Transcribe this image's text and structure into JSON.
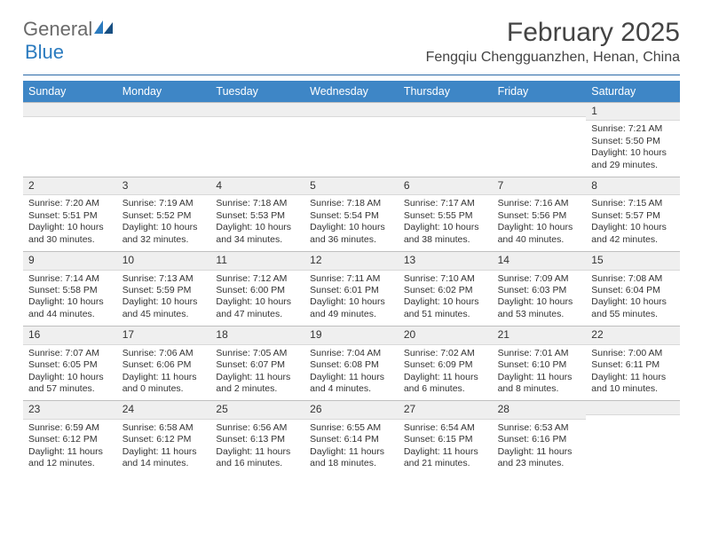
{
  "brand": {
    "g": "General",
    "b": "Blue"
  },
  "title": "February 2025",
  "location": "Fengqiu Chengguanzhen, Henan, China",
  "colors": {
    "header_bg": "#3e86c6",
    "header_text": "#ffffff",
    "rule": "#2b6aa8",
    "daybar": "#efefef",
    "brand_gray": "#6a6a6a",
    "brand_blue": "#2b7bbf"
  },
  "typography": {
    "title_fontsize": 30,
    "location_fontsize": 16,
    "dayhead_fontsize": 12.5,
    "body_fontsize": 10.5
  },
  "dayNames": [
    "Sunday",
    "Monday",
    "Tuesday",
    "Wednesday",
    "Thursday",
    "Friday",
    "Saturday"
  ],
  "weeks": [
    [
      null,
      null,
      null,
      null,
      null,
      null,
      {
        "n": "1",
        "sr": "Sunrise: 7:21 AM",
        "ss": "Sunset: 5:50 PM",
        "d1": "Daylight: 10 hours",
        "d2": "and 29 minutes."
      }
    ],
    [
      {
        "n": "2",
        "sr": "Sunrise: 7:20 AM",
        "ss": "Sunset: 5:51 PM",
        "d1": "Daylight: 10 hours",
        "d2": "and 30 minutes."
      },
      {
        "n": "3",
        "sr": "Sunrise: 7:19 AM",
        "ss": "Sunset: 5:52 PM",
        "d1": "Daylight: 10 hours",
        "d2": "and 32 minutes."
      },
      {
        "n": "4",
        "sr": "Sunrise: 7:18 AM",
        "ss": "Sunset: 5:53 PM",
        "d1": "Daylight: 10 hours",
        "d2": "and 34 minutes."
      },
      {
        "n": "5",
        "sr": "Sunrise: 7:18 AM",
        "ss": "Sunset: 5:54 PM",
        "d1": "Daylight: 10 hours",
        "d2": "and 36 minutes."
      },
      {
        "n": "6",
        "sr": "Sunrise: 7:17 AM",
        "ss": "Sunset: 5:55 PM",
        "d1": "Daylight: 10 hours",
        "d2": "and 38 minutes."
      },
      {
        "n": "7",
        "sr": "Sunrise: 7:16 AM",
        "ss": "Sunset: 5:56 PM",
        "d1": "Daylight: 10 hours",
        "d2": "and 40 minutes."
      },
      {
        "n": "8",
        "sr": "Sunrise: 7:15 AM",
        "ss": "Sunset: 5:57 PM",
        "d1": "Daylight: 10 hours",
        "d2": "and 42 minutes."
      }
    ],
    [
      {
        "n": "9",
        "sr": "Sunrise: 7:14 AM",
        "ss": "Sunset: 5:58 PM",
        "d1": "Daylight: 10 hours",
        "d2": "and 44 minutes."
      },
      {
        "n": "10",
        "sr": "Sunrise: 7:13 AM",
        "ss": "Sunset: 5:59 PM",
        "d1": "Daylight: 10 hours",
        "d2": "and 45 minutes."
      },
      {
        "n": "11",
        "sr": "Sunrise: 7:12 AM",
        "ss": "Sunset: 6:00 PM",
        "d1": "Daylight: 10 hours",
        "d2": "and 47 minutes."
      },
      {
        "n": "12",
        "sr": "Sunrise: 7:11 AM",
        "ss": "Sunset: 6:01 PM",
        "d1": "Daylight: 10 hours",
        "d2": "and 49 minutes."
      },
      {
        "n": "13",
        "sr": "Sunrise: 7:10 AM",
        "ss": "Sunset: 6:02 PM",
        "d1": "Daylight: 10 hours",
        "d2": "and 51 minutes."
      },
      {
        "n": "14",
        "sr": "Sunrise: 7:09 AM",
        "ss": "Sunset: 6:03 PM",
        "d1": "Daylight: 10 hours",
        "d2": "and 53 minutes."
      },
      {
        "n": "15",
        "sr": "Sunrise: 7:08 AM",
        "ss": "Sunset: 6:04 PM",
        "d1": "Daylight: 10 hours",
        "d2": "and 55 minutes."
      }
    ],
    [
      {
        "n": "16",
        "sr": "Sunrise: 7:07 AM",
        "ss": "Sunset: 6:05 PM",
        "d1": "Daylight: 10 hours",
        "d2": "and 57 minutes."
      },
      {
        "n": "17",
        "sr": "Sunrise: 7:06 AM",
        "ss": "Sunset: 6:06 PM",
        "d1": "Daylight: 11 hours",
        "d2": "and 0 minutes."
      },
      {
        "n": "18",
        "sr": "Sunrise: 7:05 AM",
        "ss": "Sunset: 6:07 PM",
        "d1": "Daylight: 11 hours",
        "d2": "and 2 minutes."
      },
      {
        "n": "19",
        "sr": "Sunrise: 7:04 AM",
        "ss": "Sunset: 6:08 PM",
        "d1": "Daylight: 11 hours",
        "d2": "and 4 minutes."
      },
      {
        "n": "20",
        "sr": "Sunrise: 7:02 AM",
        "ss": "Sunset: 6:09 PM",
        "d1": "Daylight: 11 hours",
        "d2": "and 6 minutes."
      },
      {
        "n": "21",
        "sr": "Sunrise: 7:01 AM",
        "ss": "Sunset: 6:10 PM",
        "d1": "Daylight: 11 hours",
        "d2": "and 8 minutes."
      },
      {
        "n": "22",
        "sr": "Sunrise: 7:00 AM",
        "ss": "Sunset: 6:11 PM",
        "d1": "Daylight: 11 hours",
        "d2": "and 10 minutes."
      }
    ],
    [
      {
        "n": "23",
        "sr": "Sunrise: 6:59 AM",
        "ss": "Sunset: 6:12 PM",
        "d1": "Daylight: 11 hours",
        "d2": "and 12 minutes."
      },
      {
        "n": "24",
        "sr": "Sunrise: 6:58 AM",
        "ss": "Sunset: 6:12 PM",
        "d1": "Daylight: 11 hours",
        "d2": "and 14 minutes."
      },
      {
        "n": "25",
        "sr": "Sunrise: 6:56 AM",
        "ss": "Sunset: 6:13 PM",
        "d1": "Daylight: 11 hours",
        "d2": "and 16 minutes."
      },
      {
        "n": "26",
        "sr": "Sunrise: 6:55 AM",
        "ss": "Sunset: 6:14 PM",
        "d1": "Daylight: 11 hours",
        "d2": "and 18 minutes."
      },
      {
        "n": "27",
        "sr": "Sunrise: 6:54 AM",
        "ss": "Sunset: 6:15 PM",
        "d1": "Daylight: 11 hours",
        "d2": "and 21 minutes."
      },
      {
        "n": "28",
        "sr": "Sunrise: 6:53 AM",
        "ss": "Sunset: 6:16 PM",
        "d1": "Daylight: 11 hours",
        "d2": "and 23 minutes."
      },
      null
    ]
  ]
}
